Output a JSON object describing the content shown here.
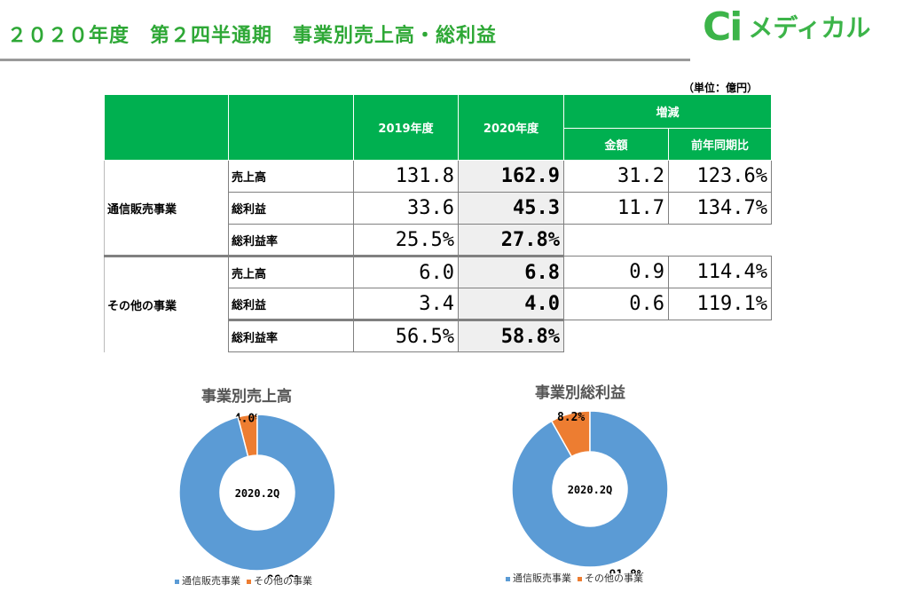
{
  "page": {
    "title": "２０２０年度　第２四半通期　事業別売上高・総利益",
    "logo_mark": "Ci",
    "logo_text": "メディカル",
    "unit": "（単位：億円）"
  },
  "table": {
    "headers": {
      "col_2019": "2019年度",
      "col_2020": "2020年度",
      "change": "増減",
      "amount": "金額",
      "yoy": "前年同期比"
    },
    "segments": [
      {
        "name": "通信販売事業",
        "rows": [
          {
            "label": "売上高",
            "v2019": "131.8",
            "v2020": "162.9",
            "amount": "31.2",
            "yoy": "123.6%"
          },
          {
            "label": "総利益",
            "v2019": "33.6",
            "v2020": "45.3",
            "amount": "11.7",
            "yoy": "134.7%"
          },
          {
            "label": "総利益率",
            "v2019": "25.5%",
            "v2020": "27.8%",
            "amount": "",
            "yoy": ""
          }
        ]
      },
      {
        "name": "その他の事業",
        "rows": [
          {
            "label": "売上高",
            "v2019": "6.0",
            "v2020": "6.8",
            "amount": "0.9",
            "yoy": "114.4%"
          },
          {
            "label": "総利益",
            "v2019": "3.4",
            "v2020": "4.0",
            "amount": "0.6",
            "yoy": "119.1%"
          },
          {
            "label": "総利益率",
            "v2019": "56.5%",
            "v2020": "58.8%",
            "amount": "",
            "yoy": ""
          }
        ]
      }
    ]
  },
  "chart_data": [
    {
      "type": "pie",
      "title": "事業別売上高",
      "center_label": "2020.2Q",
      "categories": [
        "通信販売事業",
        "その他の事業"
      ],
      "values": [
        96.0,
        4.0
      ],
      "data_labels": [
        "96.0%",
        "4.0%"
      ],
      "colors": [
        "#5b9bd5",
        "#ed7d31"
      ],
      "legend": "bottom"
    },
    {
      "type": "pie",
      "title": "事業別総利益",
      "center_label": "2020.2Q",
      "categories": [
        "通信販売事業",
        "その他の事業"
      ],
      "values": [
        91.8,
        8.2
      ],
      "data_labels": [
        "91.8%",
        "8.2%"
      ],
      "colors": [
        "#5b9bd5",
        "#ed7d31"
      ],
      "legend": "bottom"
    }
  ]
}
